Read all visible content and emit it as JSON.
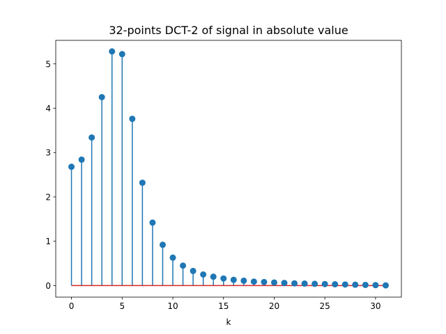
{
  "chart_data": {
    "type": "stem",
    "title": "32-points DCT-2 of signal in absolute value",
    "xlabel": "k",
    "ylabel": "",
    "xlim": [
      -1.55,
      32.55
    ],
    "ylim": [
      -0.26,
      5.53
    ],
    "xticks": [
      0,
      5,
      10,
      15,
      20,
      25,
      30
    ],
    "yticks": [
      0,
      1,
      2,
      3,
      4,
      5
    ],
    "grid": false,
    "x": [
      0,
      1,
      2,
      3,
      4,
      5,
      6,
      7,
      8,
      9,
      10,
      11,
      12,
      13,
      14,
      15,
      16,
      17,
      18,
      19,
      20,
      21,
      22,
      23,
      24,
      25,
      26,
      27,
      28,
      29,
      30,
      31
    ],
    "values": [
      2.68,
      2.84,
      3.34,
      4.25,
      5.28,
      5.22,
      3.76,
      2.32,
      1.42,
      0.92,
      0.63,
      0.45,
      0.33,
      0.25,
      0.2,
      0.16,
      0.13,
      0.11,
      0.09,
      0.08,
      0.07,
      0.06,
      0.05,
      0.045,
      0.04,
      0.035,
      0.03,
      0.025,
      0.02,
      0.015,
      0.01,
      0.005
    ],
    "colors": {
      "stem": "#1f77b4",
      "marker": "#1f77b4",
      "baseline": "#d62728"
    }
  }
}
